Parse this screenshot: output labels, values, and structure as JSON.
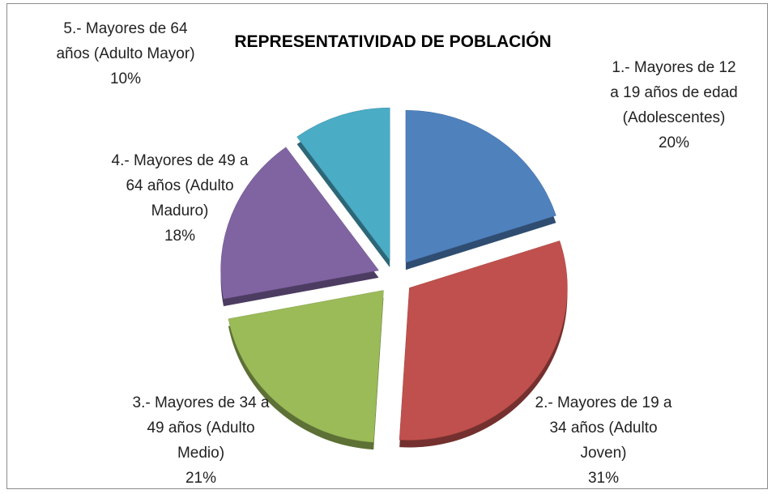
{
  "chart_data": {
    "type": "pie",
    "title": "REPRESENTATIVIDAD DE POBLACIÓN",
    "categories": [
      "1.- Mayores de 12 a 19 años de edad (Adolescentes)",
      "2.- Mayores de 19 a 34 años (Adulto Joven)",
      "3.- Mayores de 34 a 49 años (Adulto Medio)",
      "4.- Mayores de 49 a 64 años (Adulto Maduro)",
      "5.- Mayores de 64 años (Adulto Mayor)"
    ],
    "values": [
      20,
      31,
      21,
      18,
      10
    ],
    "value_labels": [
      "20%",
      "31%",
      "21%",
      "18%",
      "10%"
    ],
    "colors": [
      "#4f81bd",
      "#c0504d",
      "#9bbb59",
      "#8064a2",
      "#4bacc6"
    ]
  }
}
